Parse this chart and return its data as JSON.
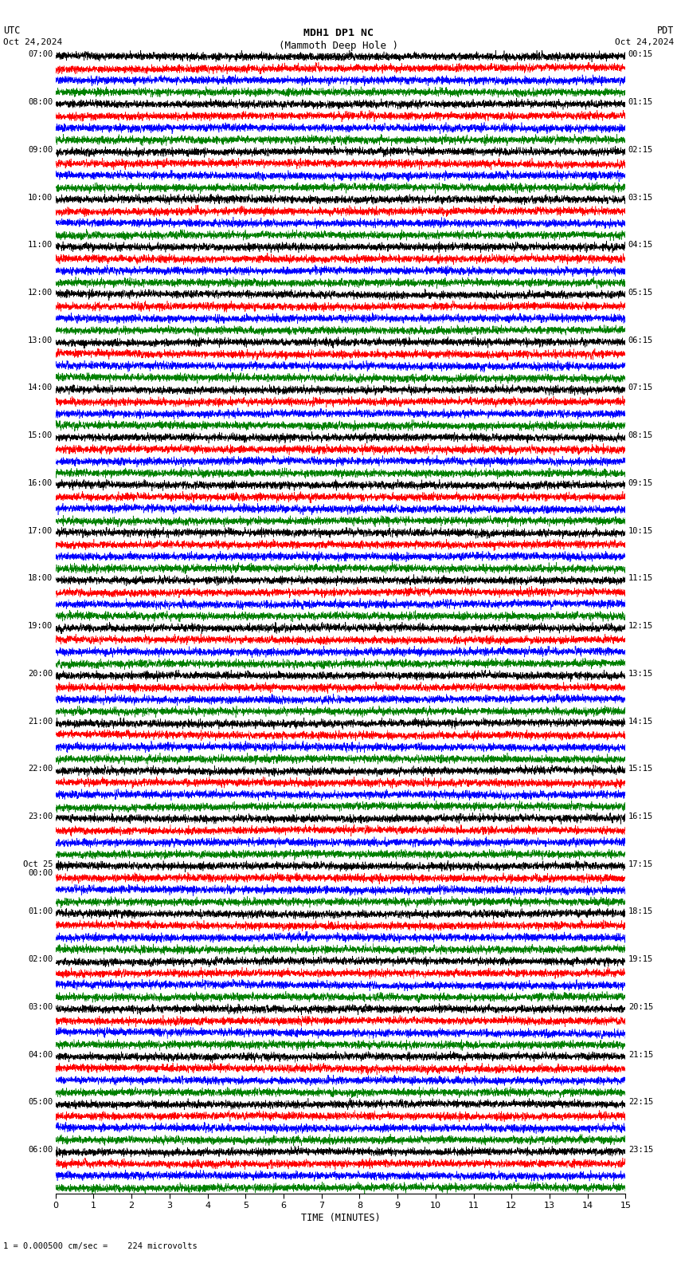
{
  "title_line1": "MDH1 DP1 NC",
  "title_line2": "(Mammoth Deep Hole )",
  "scale_label": "I = 0.000500 cm/sec",
  "bottom_label": "1 = 0.000500 cm/sec =    224 microvolts",
  "utc_label": "UTC",
  "utc_date": "Oct 24,2024",
  "pdt_label": "PDT",
  "pdt_date": "Oct 24,2024",
  "xlabel": "TIME (MINUTES)",
  "left_times": [
    "07:00",
    "08:00",
    "09:00",
    "10:00",
    "11:00",
    "12:00",
    "13:00",
    "14:00",
    "15:00",
    "16:00",
    "17:00",
    "18:00",
    "19:00",
    "20:00",
    "21:00",
    "22:00",
    "23:00",
    "Oct 25\n00:00",
    "01:00",
    "02:00",
    "03:00",
    "04:00",
    "05:00",
    "06:00"
  ],
  "right_times": [
    "00:15",
    "01:15",
    "02:15",
    "03:15",
    "04:15",
    "05:15",
    "06:15",
    "07:15",
    "08:15",
    "09:15",
    "10:15",
    "11:15",
    "12:15",
    "13:15",
    "14:15",
    "15:15",
    "16:15",
    "17:15",
    "18:15",
    "19:15",
    "20:15",
    "21:15",
    "22:15",
    "23:15"
  ],
  "n_rows": 24,
  "traces_per_row": 4,
  "trace_colors": [
    "black",
    "red",
    "blue",
    "green"
  ],
  "x_ticks": [
    0,
    1,
    2,
    3,
    4,
    5,
    6,
    7,
    8,
    9,
    10,
    11,
    12,
    13,
    14,
    15
  ],
  "xlim": [
    0,
    15
  ],
  "bg_color": "white",
  "noise_seed": 42
}
